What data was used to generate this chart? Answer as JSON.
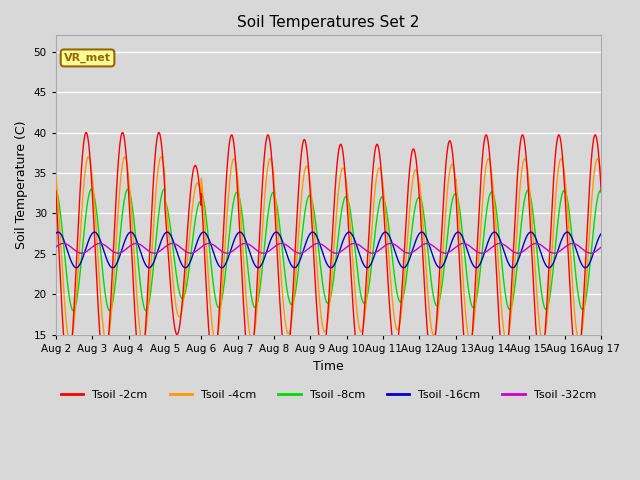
{
  "title": "Soil Temperatures Set 2",
  "xlabel": "Time",
  "ylabel": "Soil Temperature (C)",
  "ylim": [
    15,
    52
  ],
  "yticks": [
    15,
    20,
    25,
    30,
    35,
    40,
    45,
    50
  ],
  "xtick_labels": [
    "Aug 2",
    "Aug 3",
    "Aug 4",
    "Aug 5",
    "Aug 6",
    "Aug 7",
    "Aug 8",
    "Aug 9",
    "Aug 10",
    "Aug 11",
    "Aug 12",
    "Aug 13",
    "Aug 14",
    "Aug 15",
    "Aug 16",
    "Aug 17"
  ],
  "colors": {
    "Tsoil -2cm": "#ff0000",
    "Tsoil -4cm": "#ff9900",
    "Tsoil -8cm": "#00dd00",
    "Tsoil -16cm": "#0000cc",
    "Tsoil -32cm": "#cc00cc"
  },
  "annotation_text": "VR_met",
  "annotation_color": "#996600",
  "annotation_bg": "#ffff99",
  "background_color": "#d8d8d8",
  "plot_bg": "#d8d8d8",
  "grid_color": "#ffffff",
  "base_temp": 25.5,
  "amp_2cm": 14.5,
  "amp_4cm": 11.5,
  "amp_8cm": 7.5,
  "amp_16cm": 2.2,
  "amp_32cm": 0.6,
  "phase_4cm_lag": 1.5,
  "phase_8cm_lag": 3.5,
  "phase_16cm_lag": 5.5,
  "phase_32cm_lag": 9.0,
  "peak_hour": 14.0
}
